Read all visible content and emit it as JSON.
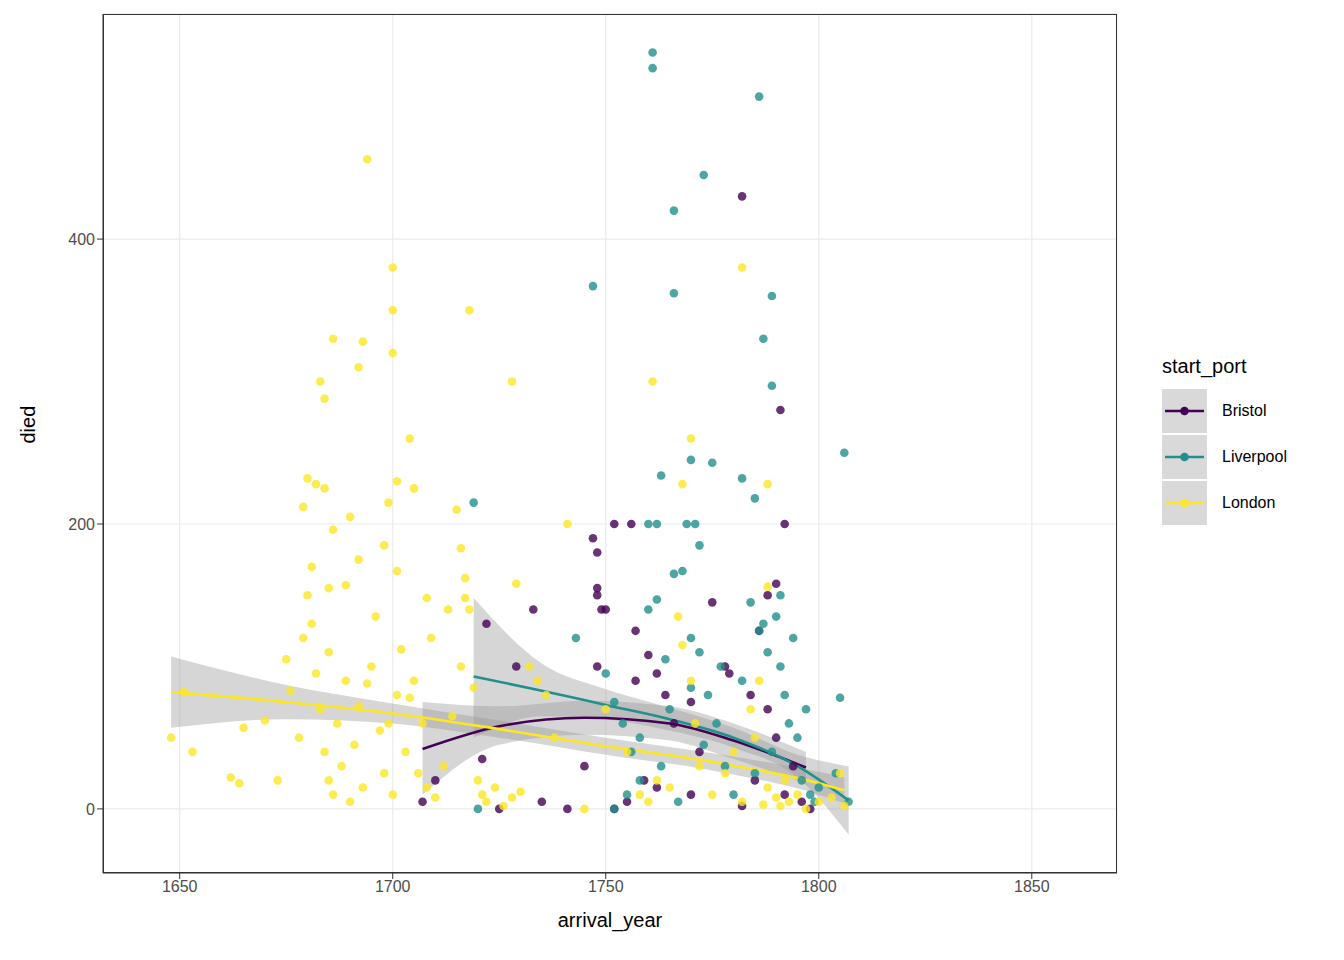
{
  "chart_data": {
    "type": "scatter",
    "x_label": "arrival_year",
    "y_label": "died",
    "legend_title": "start_port",
    "legend": "right",
    "grid": true,
    "xlim": [
      1632,
      1870
    ],
    "xticks": [
      1650,
      1700,
      1750,
      1800,
      1850
    ],
    "ylim": [
      -45,
      558
    ],
    "yticks": [
      0,
      200,
      400
    ],
    "series": [
      {
        "name": "Bristol",
        "color": "#440154",
        "marker": "circle",
        "x": [
          1782,
          1791,
          1747,
          1748,
          1748,
          1748,
          1749,
          1750,
          1752,
          1756,
          1757,
          1760,
          1762,
          1764,
          1775,
          1778,
          1790,
          1792,
          1788,
          1786,
          1784,
          1733,
          1722,
          1729,
          1721,
          1707,
          1710,
          1725,
          1735,
          1741,
          1745,
          1748,
          1752,
          1755,
          1759,
          1762,
          1766,
          1770,
          1772,
          1779,
          1782,
          1785,
          1788,
          1790,
          1792,
          1794,
          1796,
          1798,
          1770,
          1757
        ],
        "values": [
          430,
          280,
          190,
          180,
          150,
          155,
          140,
          140,
          200,
          200,
          125,
          108,
          95,
          80,
          145,
          100,
          158,
          200,
          150,
          125,
          80,
          140,
          130,
          100,
          35,
          5,
          20,
          0,
          5,
          0,
          30,
          100,
          0,
          5,
          20,
          15,
          60,
          10,
          40,
          95,
          2,
          20,
          70,
          50,
          10,
          30,
          5,
          0,
          75,
          90
        ],
        "smooth": {
          "x": [
            1707,
            1725,
            1745,
            1765,
            1780,
            1797
          ],
          "values": [
            42,
            58,
            64,
            60,
            48,
            29
          ],
          "lower": [
            10,
            45,
            52,
            48,
            35,
            18
          ],
          "upper": [
            75,
            72,
            76,
            72,
            60,
            40
          ]
        }
      },
      {
        "name": "Liverpool",
        "color": "#21908C",
        "marker": "circle",
        "x": [
          1761,
          1761,
          1786,
          1773,
          1766,
          1747,
          1766,
          1789,
          1787,
          1789,
          1806,
          1763,
          1770,
          1775,
          1769,
          1771,
          1760,
          1762,
          1719,
          1785,
          1772,
          1782,
          1743,
          1750,
          1752,
          1754,
          1756,
          1758,
          1760,
          1762,
          1764,
          1766,
          1768,
          1770,
          1772,
          1774,
          1776,
          1778,
          1780,
          1782,
          1784,
          1786,
          1788,
          1790,
          1791,
          1792,
          1793,
          1794,
          1795,
          1796,
          1797,
          1798,
          1799,
          1800,
          1752,
          1755,
          1758,
          1763,
          1767,
          1773,
          1777,
          1785,
          1789,
          1805,
          1804,
          1807,
          1720,
          1765,
          1770,
          1787,
          1791
        ],
        "values": [
          531,
          520,
          500,
          445,
          420,
          367,
          362,
          360,
          330,
          297,
          250,
          234,
          245,
          243,
          200,
          200,
          200,
          200,
          215,
          218,
          185,
          232,
          120,
          95,
          75,
          60,
          40,
          20,
          140,
          147,
          105,
          165,
          167,
          120,
          110,
          80,
          60,
          30,
          10,
          90,
          145,
          125,
          110,
          135,
          100,
          80,
          60,
          120,
          50,
          20,
          70,
          10,
          5,
          15,
          0,
          10,
          50,
          30,
          5,
          45,
          100,
          25,
          40,
          78,
          25,
          5,
          0,
          70,
          85,
          130,
          150
        ],
        "smooth": {
          "x": [
            1719,
            1735,
            1750,
            1765,
            1780,
            1795,
            1807
          ],
          "values": [
            93,
            83,
            73,
            63,
            50,
            30,
            6
          ],
          "lower": [
            50,
            65,
            63,
            55,
            43,
            22,
            -18
          ],
          "upper": [
            148,
            102,
            84,
            71,
            57,
            38,
            30
          ]
        }
      },
      {
        "name": "London",
        "color": "#FDE725",
        "marker": "circle",
        "x": [
          1694,
          1700,
          1700,
          1700,
          1693,
          1686,
          1692,
          1683,
          1684,
          1718,
          1728,
          1682,
          1679,
          1680,
          1684,
          1704,
          1699,
          1698,
          1701,
          1705,
          1690,
          1686,
          1685,
          1689,
          1692,
          1701,
          1715,
          1716,
          1717,
          1708,
          1713,
          1717,
          1741,
          1729,
          1782,
          1761,
          1770,
          1788,
          1768,
          1788,
          1648,
          1653,
          1651,
          1665,
          1662,
          1664,
          1670,
          1673,
          1675,
          1676,
          1678,
          1679,
          1680,
          1681,
          1681,
          1682,
          1683,
          1684,
          1685,
          1685,
          1686,
          1687,
          1688,
          1689,
          1690,
          1691,
          1692,
          1693,
          1694,
          1695,
          1696,
          1697,
          1698,
          1699,
          1700,
          1701,
          1702,
          1703,
          1704,
          1705,
          1706,
          1707,
          1708,
          1709,
          1710,
          1712,
          1714,
          1716,
          1718,
          1719,
          1720,
          1721,
          1722,
          1724,
          1726,
          1728,
          1730,
          1732,
          1734,
          1736,
          1738,
          1745,
          1750,
          1755,
          1758,
          1760,
          1762,
          1765,
          1767,
          1768,
          1770,
          1771,
          1772,
          1775,
          1778,
          1780,
          1782,
          1784,
          1785,
          1786,
          1787,
          1788,
          1790,
          1791,
          1792,
          1793,
          1795,
          1797,
          1800,
          1803,
          1805,
          1806
        ],
        "values": [
          456,
          380,
          350,
          320,
          328,
          330,
          310,
          300,
          288,
          350,
          300,
          228,
          212,
          232,
          225,
          260,
          215,
          185,
          230,
          225,
          205,
          196,
          155,
          157,
          175,
          167,
          210,
          183,
          162,
          148,
          140,
          148,
          200,
          158,
          380,
          300,
          260,
          228,
          228,
          156,
          50,
          40,
          82,
          57,
          22,
          18,
          62,
          20,
          105,
          83,
          50,
          120,
          150,
          170,
          130,
          95,
          70,
          40,
          110,
          20,
          10,
          60,
          30,
          90,
          5,
          45,
          72,
          15,
          88,
          100,
          135,
          55,
          25,
          60,
          10,
          80,
          112,
          40,
          78,
          90,
          25,
          60,
          15,
          120,
          8,
          30,
          65,
          100,
          140,
          85,
          20,
          10,
          5,
          15,
          2,
          8,
          12,
          100,
          90,
          80,
          50,
          0,
          70,
          40,
          10,
          5,
          20,
          15,
          135,
          115,
          90,
          60,
          30,
          10,
          25,
          40,
          5,
          70,
          50,
          90,
          3,
          15,
          8,
          2,
          20,
          5,
          10,
          0,
          5,
          8,
          25,
          2
        ],
        "smooth": {
          "x": [
            1648,
            1675,
            1700,
            1725,
            1750,
            1775,
            1800,
            1806
          ],
          "values": [
            82,
            75,
            67,
            56,
            44,
            33,
            18,
            13
          ],
          "lower": [
            57,
            63,
            60,
            50,
            38,
            27,
            10,
            4
          ],
          "upper": [
            107,
            87,
            74,
            62,
            50,
            39,
            26,
            22
          ]
        }
      }
    ]
  }
}
